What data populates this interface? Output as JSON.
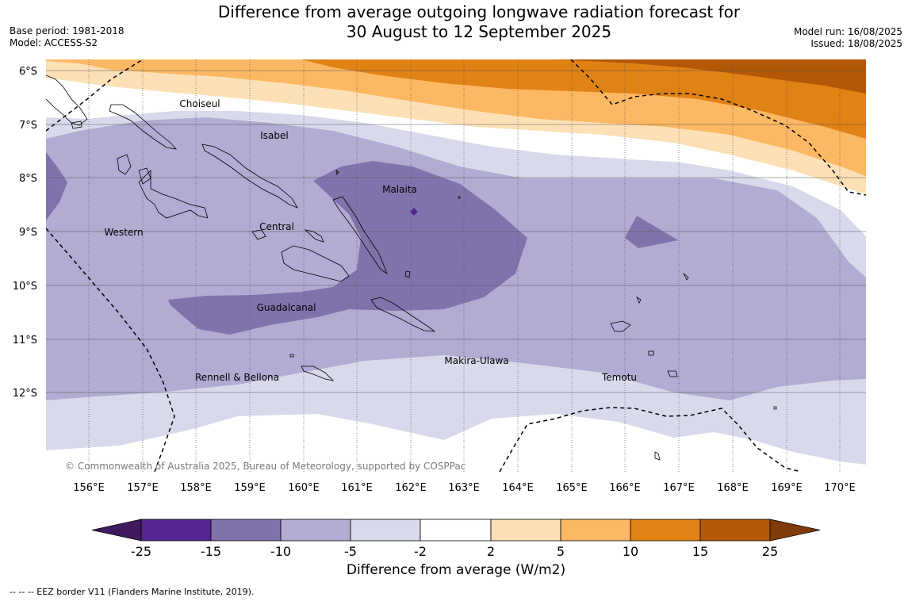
{
  "title": {
    "line1": "Difference from average outgoing longwave radiation forecast for",
    "line2": "30 August to 12 September 2025"
  },
  "meta_left": {
    "base_period": "Base period: 1981-2018",
    "model": "Model: ACCESS-S2"
  },
  "meta_right": {
    "model_run": "Model run: 16/08/2025",
    "issued": "Issued: 18/08/2025"
  },
  "map": {
    "lat_labels": [
      "6°S",
      "7°S",
      "8°S",
      "9°S",
      "10°S",
      "11°S",
      "12°S"
    ],
    "lon_labels": [
      "156°E",
      "157°E",
      "158°E",
      "159°E",
      "160°E",
      "161°E",
      "162°E",
      "163°E",
      "164°E",
      "165°E",
      "166°E",
      "167°E",
      "168°E",
      "169°E",
      "170°E"
    ],
    "provinces": [
      "Choiseul",
      "Isabel",
      "Malaita",
      "Western",
      "Central",
      "Guadalcanal",
      "Makira-Ulawa",
      "Rennell & Bellona",
      "Temotu"
    ],
    "copyright": "© Commonwealth of Australia 2025, Bureau of Meteorology, supported by COSPPac"
  },
  "colorbar": {
    "ticks": [
      "-25",
      "-15",
      "-10",
      "-5",
      "-2",
      "2",
      "5",
      "10",
      "15",
      "25"
    ],
    "colors": [
      "#3f1a5e",
      "#54278f",
      "#8073ac",
      "#b2abd2",
      "#d8daeb",
      "#ffffff",
      "#fee0b6",
      "#fdb863",
      "#e08214",
      "#b35806",
      "#7f3b08"
    ],
    "label": "Difference from average (W/m2)"
  },
  "footnote": "--  --  -- EEZ border V11 (Flanders Marine Institute, 2019)."
}
